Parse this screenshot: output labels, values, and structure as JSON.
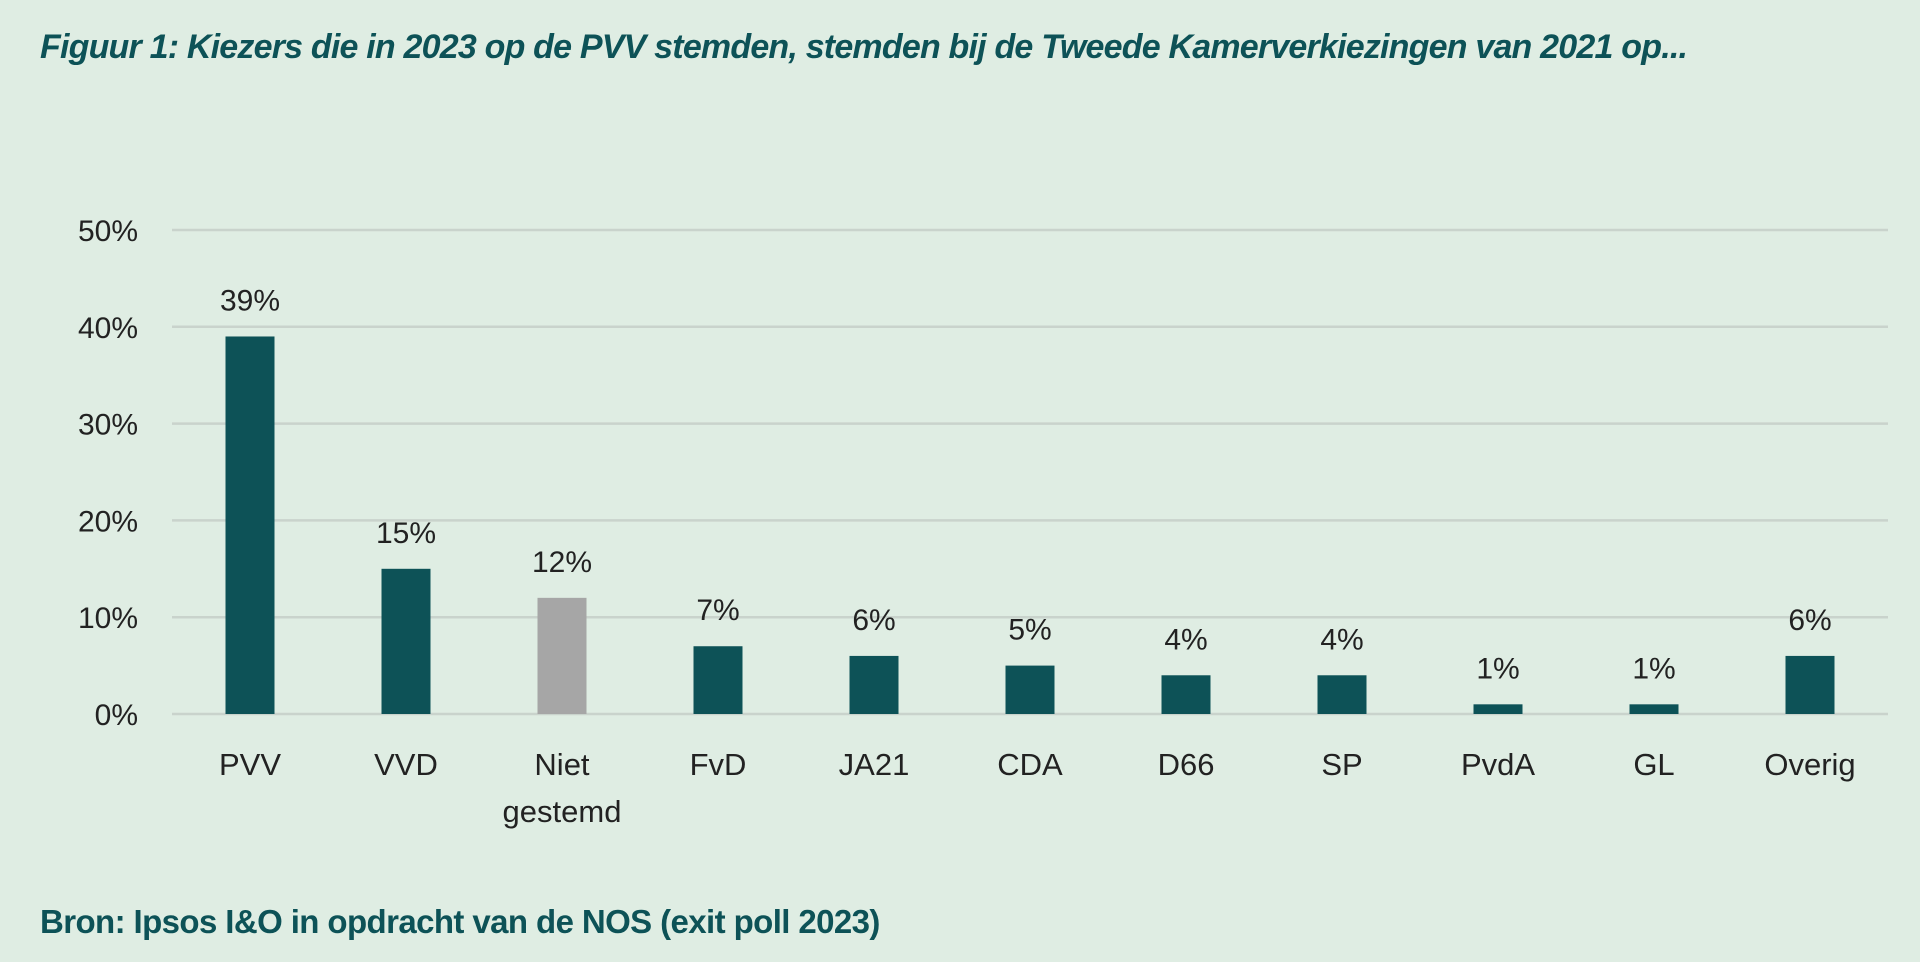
{
  "chart_data": {
    "type": "bar",
    "title": "Figuur 1: Kiezers die in 2023 op de PVV stemden, stemden bij de Tweede Kamerverkiezingen van 2021 op...",
    "source": "Bron: Ipsos I&O in opdracht van de NOS (exit poll 2023)",
    "categories": [
      [
        "PVV"
      ],
      [
        "VVD"
      ],
      [
        "Niet",
        "gestemd"
      ],
      [
        "FvD"
      ],
      [
        "JA21"
      ],
      [
        "CDA"
      ],
      [
        "D66"
      ],
      [
        "SP"
      ],
      [
        "PvdA"
      ],
      [
        "GL"
      ],
      [
        "Overig"
      ]
    ],
    "values": [
      39,
      15,
      12,
      7,
      6,
      5,
      4,
      4,
      1,
      1,
      6
    ],
    "data_labels": [
      "39%",
      "15%",
      "12%",
      "7%",
      "6%",
      "5%",
      "4%",
      "4%",
      "1%",
      "1%",
      "6%"
    ],
    "bar_colors": [
      "#0d5257",
      "#0d5257",
      "#a6a6a6",
      "#0d5257",
      "#0d5257",
      "#0d5257",
      "#0d5257",
      "#0d5257",
      "#0d5257",
      "#0d5257",
      "#0d5257"
    ],
    "yticks": [
      0,
      10,
      20,
      30,
      40,
      50
    ],
    "ytick_labels": [
      "0%",
      "10%",
      "20%",
      "30%",
      "40%",
      "50%"
    ],
    "ylim": [
      0,
      50
    ],
    "grid": true,
    "xlabel": "",
    "ylabel": ""
  }
}
